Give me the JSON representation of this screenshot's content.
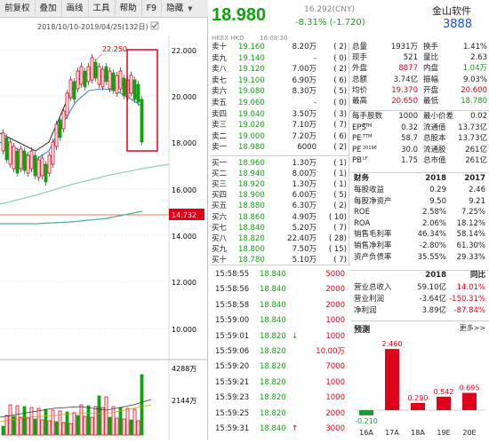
{
  "toolbar": {
    "items": [
      "前复权",
      "叠加",
      "画线",
      "工具",
      "帮助",
      "F9",
      "隐藏"
    ]
  },
  "chart": {
    "date_range": "2018/10/10-2019/04/25(132日)",
    "high_label": "22.250",
    "y_labels": [
      "22.000",
      "20.000",
      "18.000",
      "16.000",
      "14.000",
      "12.000",
      "10.000"
    ],
    "prev_close_label": "14.732",
    "vol_labels": [
      "4288万",
      "2144万"
    ]
  },
  "quote": {
    "price": "18.980",
    "change": "-8.31% (-1.720)",
    "mid_value": "16.292(CNY)",
    "name": "金山软件",
    "code": "3888",
    "exchange": "HKEX HKD",
    "time": "16:08:30"
  },
  "sell_book": [
    {
      "label": "卖十",
      "price": "19.160",
      "vol": "8.20万",
      "n": "( 2)"
    },
    {
      "label": "卖九",
      "price": "19.140",
      "vol": "-",
      "n": "( 0)"
    },
    {
      "label": "卖八",
      "price": "19.120",
      "vol": "7.00万",
      "n": "( 2)"
    },
    {
      "label": "卖七",
      "price": "19.100",
      "vol": "6.90万",
      "n": "( 6)"
    },
    {
      "label": "卖六",
      "price": "19.080",
      "vol": "8.30万",
      "n": "( 5)"
    },
    {
      "label": "卖五",
      "price": "19.060",
      "vol": "-",
      "n": "( 0)"
    },
    {
      "label": "卖四",
      "price": "19.040",
      "vol": "3.50万",
      "n": "( 3)"
    },
    {
      "label": "卖三",
      "price": "19.020",
      "vol": "7.10万",
      "n": "( 7)"
    },
    {
      "label": "卖二",
      "price": "19.000",
      "vol": "7.20万",
      "n": "( 6)"
    },
    {
      "label": "卖一",
      "price": "18.980",
      "vol": "6000",
      "n": "( 2)"
    }
  ],
  "buy_book": [
    {
      "label": "买一",
      "price": "18.960",
      "vol": "1.30万",
      "n": "( 1)"
    },
    {
      "label": "买二",
      "price": "18.940",
      "vol": "8.00万",
      "n": "( 1)"
    },
    {
      "label": "买三",
      "price": "18.920",
      "vol": "1.30万",
      "n": "( 1)"
    },
    {
      "label": "买四",
      "price": "18.900",
      "vol": "6.00万",
      "n": "( 5)"
    },
    {
      "label": "买五",
      "price": "18.880",
      "vol": "6.30万",
      "n": "( 2)"
    },
    {
      "label": "买六",
      "price": "18.860",
      "vol": "4.90万",
      "n": "( 10)"
    },
    {
      "label": "买七",
      "price": "18.840",
      "vol": "5.20万",
      "n": "( 7)"
    },
    {
      "label": "买八",
      "price": "18.820",
      "vol": "22.40万",
      "n": "( 28)"
    },
    {
      "label": "买九",
      "price": "18.800",
      "vol": "7.50万",
      "n": "( 15)"
    },
    {
      "label": "买十",
      "price": "18.780",
      "vol": "5.10万",
      "n": "( 7)"
    }
  ],
  "stats": [
    {
      "k1": "总量",
      "v1": "1931万",
      "k2": "换手",
      "v2": "1.41%"
    },
    {
      "k1": "现手",
      "v1": "521",
      "k2": "量比",
      "v2": "2.63"
    },
    {
      "k1": "外盘",
      "v1": "8877",
      "k2": "内盘",
      "v2": "1.04万"
    },
    {
      "k1": "总额",
      "v1": "3.74亿",
      "k2": "振幅",
      "v2": "9.03%"
    },
    {
      "k1": "均价",
      "v1": "19.370",
      "k2": "开盘",
      "v2": "20.600"
    },
    {
      "k1": "最高",
      "v1": "20.650",
      "k2": "最低",
      "v2": "18.780"
    }
  ],
  "stats2": [
    {
      "k1": "每手股数",
      "v1": "1000",
      "k2": "最小价差",
      "v2": "0.02"
    },
    {
      "k1": "EPS",
      "sup1": "TTM",
      "v1": "0.32",
      "k2": "流通值",
      "v2": "13.73亿"
    },
    {
      "k1": "PE",
      "sup1": "TTM",
      "v1": "58.7",
      "k2": "总股本",
      "v2": "13.73亿"
    },
    {
      "k1": "PE",
      "sup1": "2019E",
      "v1": "30.0",
      "k2": "流通股",
      "v2": "261亿"
    },
    {
      "k1": "PB",
      "sup1": "LF",
      "v1": "1.75",
      "k2": "总市值",
      "v2": "261亿"
    }
  ],
  "ticks": [
    {
      "time": "15:58:55",
      "price": "18.840",
      "vol": "5000"
    },
    {
      "time": "15:58:56",
      "price": "18.840",
      "vol": "2000"
    },
    {
      "time": "15:58:58",
      "price": "18.840",
      "vol": "2000"
    },
    {
      "time": "15:59:00",
      "price": "18.840",
      "vol": "1000"
    },
    {
      "time": "15:59:01",
      "price": "18.820",
      "arrow": "↓",
      "vol": "1000"
    },
    {
      "time": "15:59:06",
      "price": "18.820",
      "vol": "10.00万"
    },
    {
      "time": "15:59:20",
      "price": "18.820",
      "vol": "7000"
    },
    {
      "time": "15:59:21",
      "price": "18.820",
      "vol": "1000"
    },
    {
      "time": "15:59:23",
      "price": "18.820",
      "vol": "1000"
    },
    {
      "time": "15:59:25",
      "price": "18.820",
      "vol": "2000"
    },
    {
      "time": "15:59:31",
      "price": "18.840",
      "arrow": "↑",
      "vol": "3000"
    }
  ],
  "fin": {
    "headers": [
      "财务",
      "2018",
      "2017"
    ],
    "rows": [
      {
        "k": "每股收益",
        "a": "0.29",
        "b": "2.46"
      },
      {
        "k": "每股净资产",
        "a": "9.50",
        "b": "9.21"
      },
      {
        "k": "ROE",
        "a": "2.58%",
        "b": "7.25%"
      },
      {
        "k": "ROA",
        "a": "2.06%",
        "b": "18.12%"
      },
      {
        "k": "销售毛利率",
        "a": "46.34%",
        "b": "58.14%"
      },
      {
        "k": "销售净利率",
        "a": "-2.80%",
        "b": "61.30%"
      },
      {
        "k": "资产负债率",
        "a": "35.55%",
        "b": "29.33%"
      }
    ]
  },
  "fin2": {
    "headers": [
      "2018",
      "同比"
    ],
    "rows": [
      {
        "k": "营业总收入",
        "a": "59.10亿",
        "b": "14.01%"
      },
      {
        "k": "营业利润",
        "a": "-3.64亿",
        "b": "-150.31%"
      },
      {
        "k": "净利润",
        "a": "3.89亿",
        "b": "-87.84%"
      }
    ]
  },
  "forecast": {
    "title": "预测",
    "more": "更多>>"
  },
  "chart_data": {
    "type": "bar",
    "categories": [
      "16A",
      "17A",
      "18A",
      "19E",
      "20E"
    ],
    "values": [
      -0.21,
      2.46,
      0.29,
      0.542,
      0.695
    ],
    "labels": [
      "-0.210",
      "2.460",
      "0.290",
      "0.542",
      "0.695"
    ],
    "colors": [
      "#1a9a3a",
      "#e0001a",
      "#e0001a",
      "#e0001a",
      "#e0001a"
    ]
  }
}
